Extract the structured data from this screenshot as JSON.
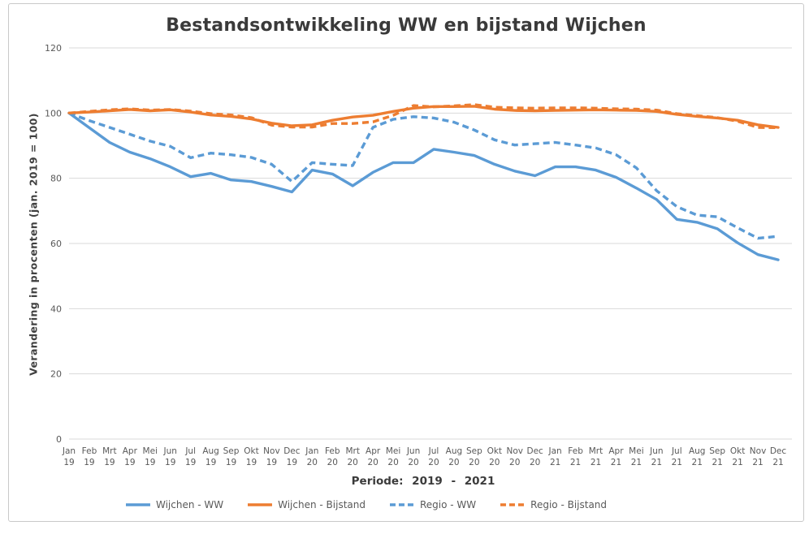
{
  "colors": {
    "blue": "#5B9BD5",
    "orange": "#ED7D31",
    "grid": "#D9D9D9",
    "tick_text": "#595959",
    "axis_title_text": "#404040",
    "border": "#C9C9C9"
  },
  "chart_data": {
    "type": "line",
    "title": "Bestandsontwikkeling WW en bijstand Wijchen",
    "xlabel": "Periode: 2019 - 2021",
    "ylabel": "Verandering in procenten (jan. 2019 = 100)",
    "ylim": [
      0,
      120
    ],
    "yticks": [
      0,
      20,
      40,
      60,
      80,
      100,
      120
    ],
    "grid": "horizontal-only",
    "legend_position": "bottom",
    "categories": [
      "Jan 19",
      "Feb 19",
      "Mrt 19",
      "Apr 19",
      "Mei 19",
      "Jun 19",
      "Jul 19",
      "Aug 19",
      "Sep 19",
      "Okt 19",
      "Nov 19",
      "Dec 19",
      "Jan 20",
      "Feb 20",
      "Mrt 20",
      "Apr 20",
      "Mei 20",
      "Jun 20",
      "Jul 20",
      "Aug 20",
      "Sep 20",
      "Okt 20",
      "Nov 20",
      "Dec 20",
      "Jan 21",
      "Feb 21",
      "Mrt 21",
      "Apr 21",
      "Mei 21",
      "Jun 21",
      "Jul 21",
      "Aug 21",
      "Sep 21",
      "Okt 21",
      "Nov 21",
      "Dec 21"
    ],
    "series": [
      {
        "name": "Wijchen - WW",
        "color_key": "blue",
        "dash": false,
        "values": [
          100,
          95.5,
          91,
          88,
          86,
          83.5,
          80.5,
          81.5,
          79.5,
          79,
          77.5,
          75.8,
          82.5,
          81.3,
          77.7,
          81.8,
          84.8,
          84.8,
          88.9,
          88,
          87,
          84.3,
          82.2,
          80.8,
          83.5,
          83.5,
          82.5,
          80.3,
          77,
          73.5,
          67.4,
          66.5,
          64.5,
          60.2,
          56.6,
          55
        ]
      },
      {
        "name": "Wijchen - Bijstand",
        "color_key": "orange",
        "dash": false,
        "values": [
          100,
          100.3,
          100.7,
          101.1,
          100.7,
          101,
          100.3,
          99.4,
          99,
          98.2,
          96.9,
          96.1,
          96.4,
          97.8,
          98.8,
          99.3,
          100.5,
          101.5,
          102,
          102,
          102.1,
          101.2,
          100.8,
          100.7,
          100.8,
          100.9,
          101,
          100.9,
          100.8,
          100.5,
          99.6,
          99,
          98.5,
          97.8,
          96.4,
          95.6
        ]
      },
      {
        "name": "Regio - WW",
        "color_key": "blue",
        "dash": true,
        "values": [
          100,
          97.7,
          95.6,
          93.5,
          91.4,
          89.8,
          86.3,
          87.7,
          87.2,
          86.4,
          84.3,
          79,
          84.8,
          84.3,
          83.9,
          95.6,
          98.1,
          98.9,
          98.5,
          97.2,
          94.8,
          91.8,
          90.2,
          90.6,
          91,
          90.2,
          89.3,
          87.2,
          83.2,
          76.2,
          71.3,
          68.7,
          68.2,
          64.8,
          61.6,
          62.2
        ]
      },
      {
        "name": "Regio - Bijstand",
        "color_key": "orange",
        "dash": true,
        "values": [
          100,
          100.5,
          101,
          101.3,
          100.9,
          101.1,
          100.6,
          99.8,
          99.4,
          98.6,
          96.3,
          95.7,
          95.7,
          96.8,
          96.8,
          97.3,
          99.3,
          102.3,
          101.9,
          102.2,
          102.6,
          101.8,
          101.6,
          101.5,
          101.6,
          101.6,
          101.5,
          101.3,
          101.2,
          100.9,
          99.8,
          99.2,
          98.6,
          97.5,
          95.6,
          95.5
        ]
      }
    ]
  }
}
